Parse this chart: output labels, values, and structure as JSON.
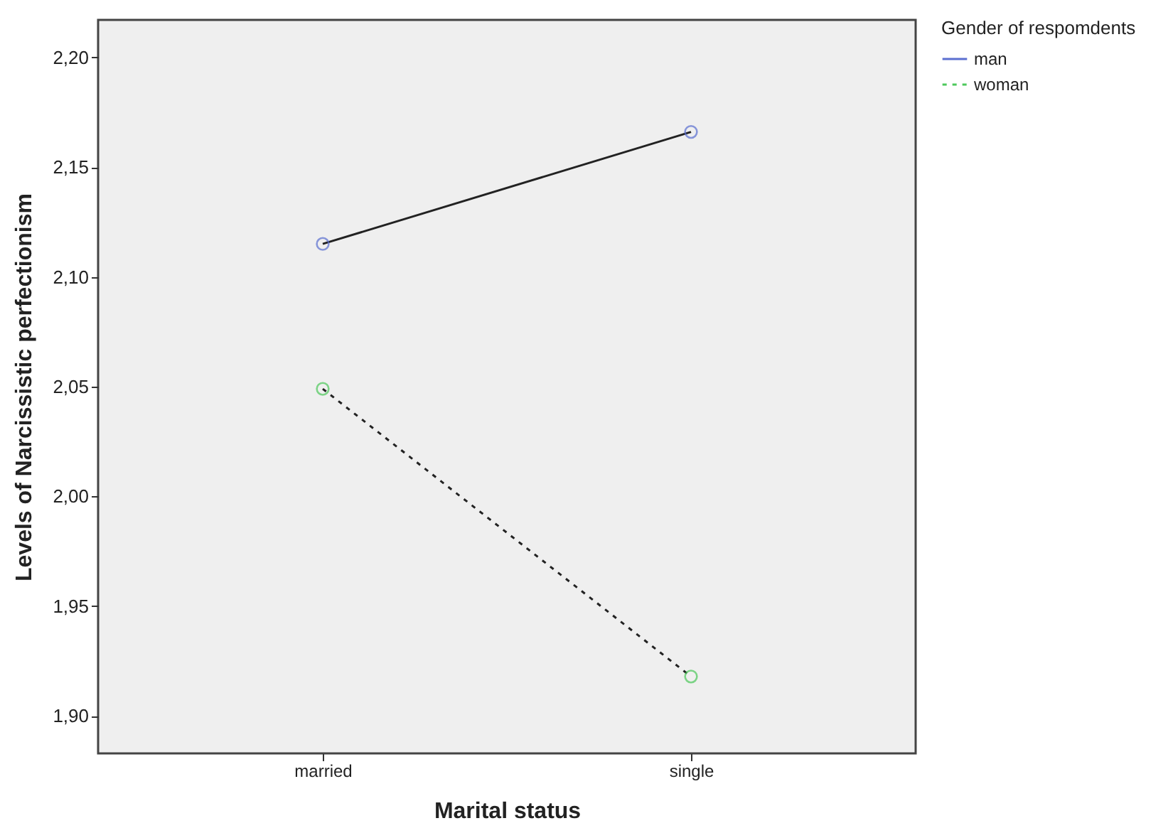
{
  "chart_data": {
    "type": "line",
    "xlabel": "Marital status",
    "ylabel": "Levels of Narcissistic perfectionism",
    "legend_title": "Gender of respomdents",
    "categories": [
      "married",
      "single"
    ],
    "series": [
      {
        "name": "man",
        "color": "#5b6fd0",
        "values": [
          2.115,
          2.166
        ],
        "line_style": "solid"
      },
      {
        "name": "woman",
        "color": "#4cc85a",
        "values": [
          2.049,
          1.918
        ],
        "line_style": "dashed"
      }
    ],
    "ylim": [
      1.883,
      2.217
    ],
    "yticks": [
      {
        "value": 1.9,
        "label": "1,90"
      },
      {
        "value": 1.95,
        "label": "1,95"
      },
      {
        "value": 2.0,
        "label": "2,00"
      },
      {
        "value": 2.05,
        "label": "2,05"
      },
      {
        "value": 2.1,
        "label": "2,10"
      },
      {
        "value": 2.15,
        "label": "2,15"
      },
      {
        "value": 2.2,
        "label": "2,20"
      }
    ],
    "grid": false,
    "legend": "top right",
    "marker": "circle"
  }
}
